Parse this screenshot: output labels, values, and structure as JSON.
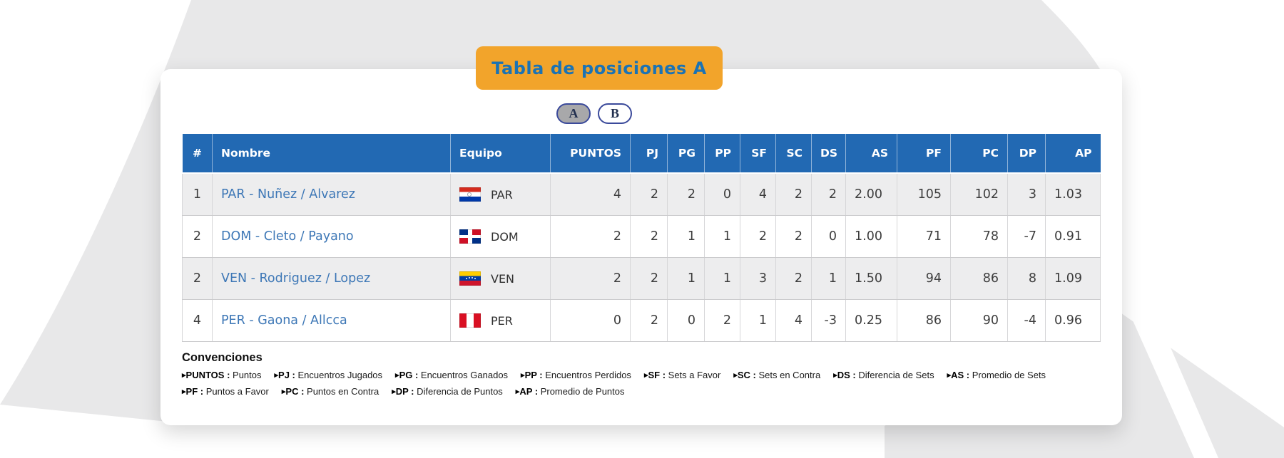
{
  "title": "Tabla de posiciones A",
  "colors": {
    "accent_orange": "#f2a42b",
    "header_blue": "#2269b3",
    "link_blue": "#3d77b6",
    "selected_pill_gray": "#a8a8aa",
    "pill_border_navy": "#3b4a9b",
    "row_alt_gray": "#ededee",
    "background_gray": "#e8e8e9"
  },
  "tabs": [
    {
      "label": "A",
      "selected": true
    },
    {
      "label": "B",
      "selected": false
    }
  ],
  "table": {
    "columns": [
      "#",
      "Nombre",
      "Equipo",
      "PUNTOS",
      "PJ",
      "PG",
      "PP",
      "SF",
      "SC",
      "DS",
      "AS",
      "PF",
      "PC",
      "DP",
      "AP"
    ],
    "rows": [
      {
        "rank": "1",
        "name": "PAR - Nuñez / Alvarez",
        "team": "PAR",
        "flag": "paraguay-flag",
        "puntos": "4",
        "pj": "2",
        "pg": "2",
        "pp": "0",
        "sf": "4",
        "sc": "2",
        "ds": "2",
        "as": "2.00",
        "pf": "105",
        "pc": "102",
        "dp": "3",
        "ap": "1.03"
      },
      {
        "rank": "2",
        "name": "DOM - Cleto / Payano",
        "team": "DOM",
        "flag": "dominican-republic-flag",
        "puntos": "2",
        "pj": "2",
        "pg": "1",
        "pp": "1",
        "sf": "2",
        "sc": "2",
        "ds": "0",
        "as": "1.00",
        "pf": "71",
        "pc": "78",
        "dp": "-7",
        "ap": "0.91"
      },
      {
        "rank": "2",
        "name": "VEN - Rodriguez / Lopez",
        "team": "VEN",
        "flag": "venezuela-flag",
        "puntos": "2",
        "pj": "2",
        "pg": "1",
        "pp": "1",
        "sf": "3",
        "sc": "2",
        "ds": "1",
        "as": "1.50",
        "pf": "94",
        "pc": "86",
        "dp": "8",
        "ap": "1.09"
      },
      {
        "rank": "4",
        "name": "PER - Gaona / Allcca",
        "team": "PER",
        "flag": "peru-flag",
        "puntos": "0",
        "pj": "2",
        "pg": "0",
        "pp": "2",
        "sf": "1",
        "sc": "4",
        "ds": "-3",
        "as": "0.25",
        "pf": "86",
        "pc": "90",
        "dp": "-4",
        "ap": "0.96"
      }
    ]
  },
  "legend": {
    "heading": "Convenciones",
    "items": [
      {
        "abbr": "PUNTOS",
        "desc": "Puntos"
      },
      {
        "abbr": "PJ",
        "desc": "Encuentros Jugados"
      },
      {
        "abbr": "PG",
        "desc": "Encuentros Ganados"
      },
      {
        "abbr": "PP",
        "desc": "Encuentros Perdidos"
      },
      {
        "abbr": "SF",
        "desc": "Sets a Favor"
      },
      {
        "abbr": "SC",
        "desc": "Sets en Contra"
      },
      {
        "abbr": "DS",
        "desc": "Diferencia de Sets"
      },
      {
        "abbr": "AS",
        "desc": "Promedio de Sets"
      },
      {
        "abbr": "PF",
        "desc": "Puntos a Favor"
      },
      {
        "abbr": "PC",
        "desc": "Puntos en Contra"
      },
      {
        "abbr": "DP",
        "desc": "Diferencia de Puntos"
      },
      {
        "abbr": "AP",
        "desc": "Promedio de Puntos"
      }
    ]
  }
}
